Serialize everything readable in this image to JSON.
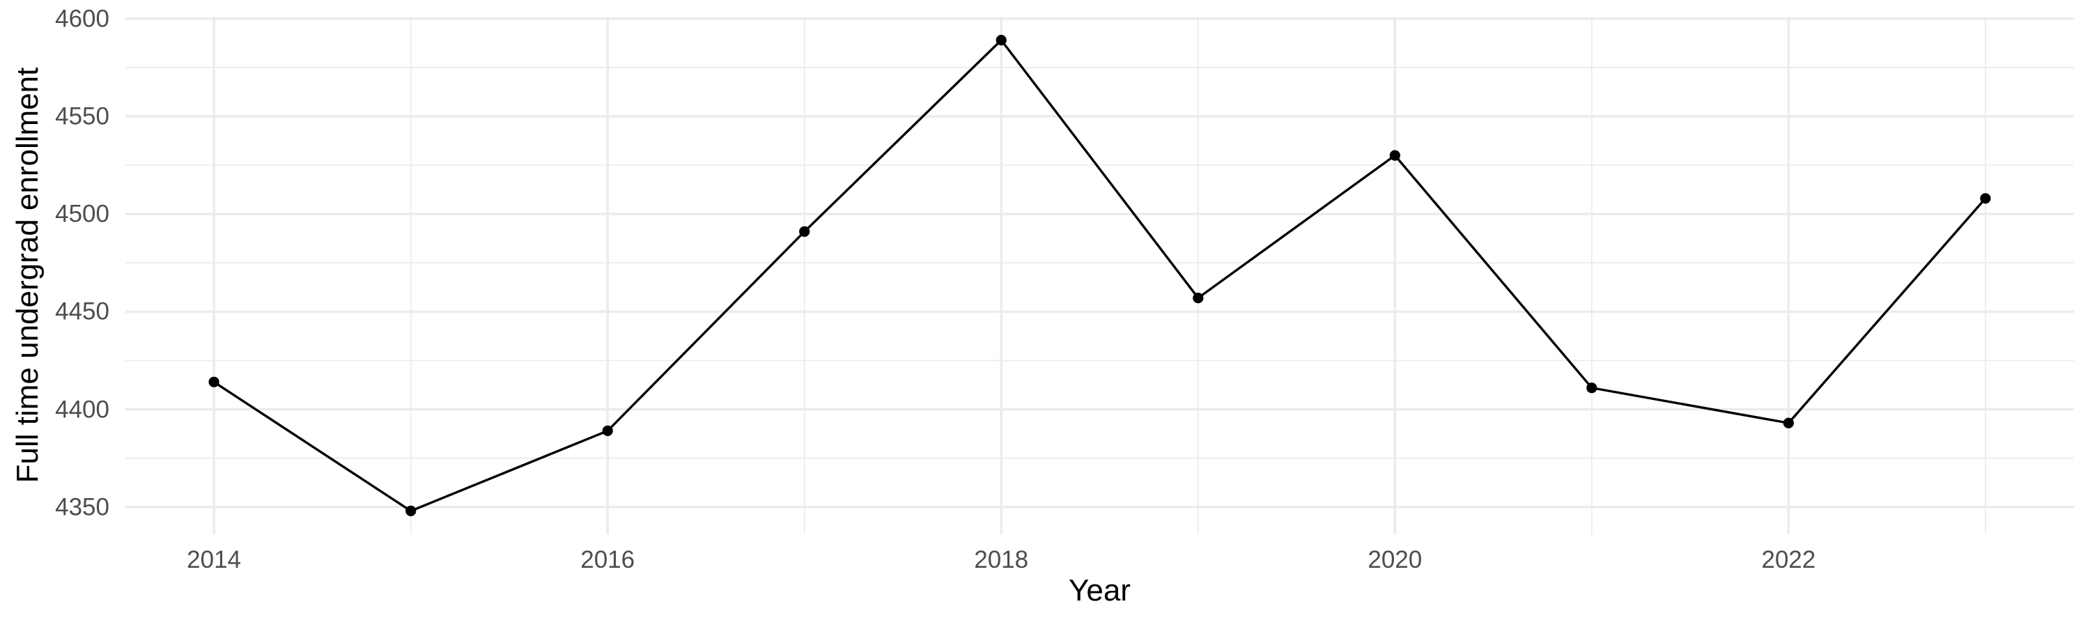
{
  "chart": {
    "xlabel": "Year",
    "ylabel": "Full time undergrad enrollment"
  },
  "chart_data": {
    "type": "line",
    "title": "",
    "xlabel": "Year",
    "ylabel": "Full time undergrad enrollment",
    "x": [
      2014,
      2015,
      2016,
      2017,
      2018,
      2019,
      2020,
      2021,
      2022,
      2023
    ],
    "values": [
      4414,
      4348,
      4389,
      4491,
      4589,
      4457,
      4530,
      4411,
      4393,
      4508
    ],
    "series": [
      {
        "name": "Full time undergrad enrollment",
        "values": [
          4414,
          4348,
          4389,
          4491,
          4589,
          4457,
          4530,
          4411,
          4393,
          4508
        ]
      }
    ],
    "x_ticks_major": [
      2014,
      2016,
      2018,
      2020,
      2022
    ],
    "x_ticks_minor": [
      2015,
      2017,
      2019,
      2021,
      2023
    ],
    "y_ticks_major": [
      4350,
      4400,
      4450,
      4500,
      4550,
      4600
    ],
    "y_ticks_minor": [
      4375,
      4425,
      4475,
      4525,
      4575
    ],
    "xlim": [
      2013.55,
      2023.45
    ],
    "ylim": [
      4336,
      4601
    ],
    "grid": true,
    "legend_position": "none",
    "colors": {
      "line": "#000000",
      "point": "#000000",
      "grid": "#ebebeb",
      "tick_label": "#4d4d4d",
      "axis_title": "#000000",
      "background": "#ffffff"
    }
  }
}
